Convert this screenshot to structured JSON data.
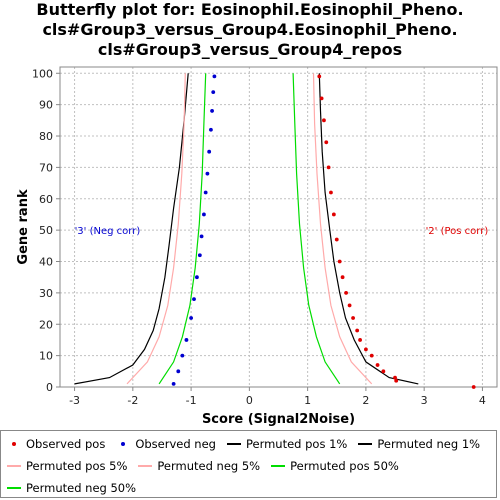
{
  "title": {
    "line1": "Butterfly plot for: Eosinophil.Eosinophil_Pheno.",
    "line2": "cls#Group3_versus_Group4.Eosinophil_Pheno.",
    "line3": "cls#Group3_versus_Group4_repos"
  },
  "colors": {
    "observed_pos": "#e00000",
    "observed_neg": "#0000d0",
    "perm_1": "#000000",
    "perm_5": "#ffaaaa",
    "perm_50": "#00dd00",
    "grid": "#c0c0c0"
  },
  "legend": [
    {
      "key": "observed_pos",
      "label": "Observed pos",
      "kind": "dot"
    },
    {
      "key": "observed_neg",
      "label": "Observed neg",
      "kind": "dot"
    },
    {
      "key": "perm_pos_1",
      "label": "Permuted pos 1%",
      "kind": "line"
    },
    {
      "key": "perm_neg_1",
      "label": "Permuted neg 1%",
      "kind": "line"
    },
    {
      "key": "perm_pos_5",
      "label": "Permuted pos 5%",
      "kind": "line"
    },
    {
      "key": "perm_neg_5",
      "label": "Permuted neg 5%",
      "kind": "line"
    },
    {
      "key": "perm_pos_50",
      "label": "Permuted pos 50%",
      "kind": "line"
    },
    {
      "key": "perm_neg_50",
      "label": "Permuted neg 50%",
      "kind": "line"
    }
  ],
  "chart_data": {
    "type": "scatter",
    "xlabel": "Score (Signal2Noise)",
    "ylabel": "Gene rank",
    "xlim": [
      -3.25,
      4.25
    ],
    "ylim": [
      0,
      102
    ],
    "xticks": [
      -3,
      -2,
      -1,
      0,
      1,
      2,
      3,
      4
    ],
    "yticks": [
      0,
      10,
      20,
      30,
      40,
      50,
      60,
      70,
      80,
      90,
      100
    ],
    "grid": true,
    "annotations": [
      {
        "text": "'3' (Neg corr)",
        "x": -3.0,
        "y": 50,
        "color": "#0000d0",
        "anchor": "start"
      },
      {
        "text": "'2' (Pos corr)",
        "x": 4.1,
        "y": 50,
        "color": "#e00000",
        "anchor": "end"
      }
    ],
    "series": [
      {
        "name": "Observed pos",
        "kind": "points",
        "color": "#e00000",
        "x": [
          3.85,
          2.52,
          2.5,
          2.3,
          2.2,
          2.1,
          2.0,
          1.9,
          1.85,
          1.78,
          1.72,
          1.66,
          1.6,
          1.55,
          1.5,
          1.45,
          1.4,
          1.36,
          1.32,
          1.28,
          1.24,
          1.2
        ],
        "y": [
          0,
          2,
          3,
          5,
          7,
          10,
          12,
          15,
          18,
          22,
          26,
          30,
          35,
          40,
          47,
          55,
          62,
          70,
          78,
          85,
          92,
          99
        ]
      },
      {
        "name": "Observed neg",
        "kind": "points",
        "color": "#0000d0",
        "x": [
          -1.3,
          -1.22,
          -1.15,
          -1.08,
          -1.0,
          -0.95,
          -0.9,
          -0.85,
          -0.82,
          -0.78,
          -0.75,
          -0.72,
          -0.69,
          -0.66,
          -0.64,
          -0.62,
          -0.6
        ],
        "y": [
          1,
          5,
          10,
          15,
          22,
          28,
          35,
          42,
          48,
          55,
          62,
          68,
          75,
          82,
          88,
          94,
          99
        ]
      },
      {
        "name": "Permuted pos 1%",
        "kind": "line",
        "color": "#000000",
        "x": [
          2.9,
          2.4,
          2.0,
          1.8,
          1.65,
          1.55,
          1.45,
          1.38,
          1.3,
          1.25,
          1.22,
          1.2
        ],
        "y": [
          1,
          3,
          8,
          15,
          22,
          30,
          40,
          50,
          62,
          75,
          88,
          100
        ]
      },
      {
        "name": "Permuted neg 1%",
        "kind": "line",
        "color": "#000000",
        "x": [
          -3.0,
          -2.4,
          -2.0,
          -1.8,
          -1.65,
          -1.55,
          -1.45,
          -1.38,
          -1.3,
          -1.2,
          -1.12,
          -1.05
        ],
        "y": [
          1,
          3,
          7,
          12,
          18,
          25,
          35,
          45,
          57,
          70,
          85,
          100
        ]
      },
      {
        "name": "Permuted pos 5%",
        "kind": "line",
        "color": "#ffaaaa",
        "x": [
          2.1,
          1.75,
          1.55,
          1.4,
          1.3,
          1.22,
          1.16,
          1.12,
          1.1
        ],
        "y": [
          1,
          8,
          16,
          26,
          38,
          52,
          68,
          84,
          100
        ]
      },
      {
        "name": "Permuted neg 5%",
        "kind": "line",
        "color": "#ffaaaa",
        "x": [
          -2.1,
          -1.75,
          -1.55,
          -1.4,
          -1.3,
          -1.22,
          -1.16,
          -1.12,
          -1.1
        ],
        "y": [
          1,
          8,
          16,
          26,
          38,
          52,
          68,
          84,
          100
        ]
      },
      {
        "name": "Permuted pos 50%",
        "kind": "line",
        "color": "#00dd00",
        "x": [
          1.55,
          1.3,
          1.15,
          1.02,
          0.93,
          0.86,
          0.81,
          0.78,
          0.75
        ],
        "y": [
          1,
          8,
          16,
          26,
          38,
          52,
          68,
          84,
          100
        ]
      },
      {
        "name": "Permuted neg 50%",
        "kind": "line",
        "color": "#00dd00",
        "x": [
          -1.55,
          -1.3,
          -1.15,
          -1.02,
          -0.93,
          -0.86,
          -0.81,
          -0.78,
          -0.75
        ],
        "y": [
          1,
          8,
          16,
          26,
          38,
          52,
          68,
          84,
          100
        ]
      }
    ]
  }
}
